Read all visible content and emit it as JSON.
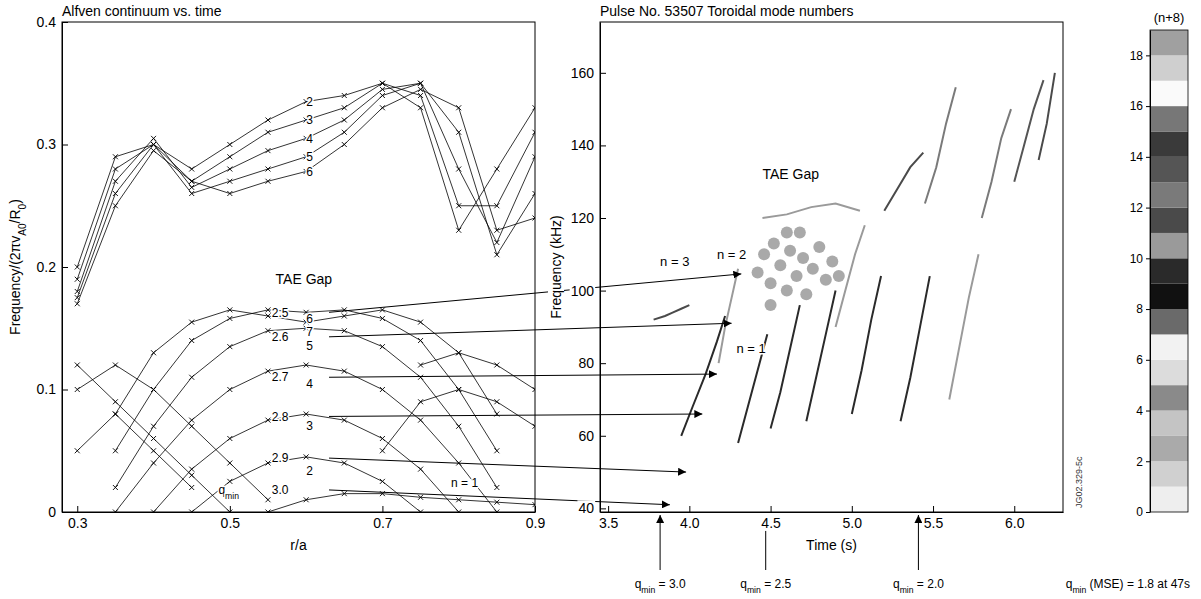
{
  "chart_data": [
    {
      "type": "line",
      "title": "Alfven continuum vs. time",
      "xlabel": "r/a",
      "ylabel": [
        {
          "text": "Frequency/(2πv"
        },
        {
          "text": "A0",
          "sub": true
        },
        {
          "text": "/R"
        },
        {
          "text": "0",
          "sub": true
        },
        {
          "text": ")"
        }
      ],
      "xlim": [
        0.28,
        0.9
      ],
      "xticks": [
        0.3,
        0.5,
        0.7,
        0.9
      ],
      "ylim": [
        0,
        0.4
      ],
      "yticks": [
        0,
        0.1,
        0.2,
        0.3,
        0.4
      ],
      "color": "#000000",
      "marker": "x",
      "line_style": "solid",
      "series": [
        {
          "x": [
            0.55,
            0.6,
            0.65,
            0.7,
            0.75,
            0.8,
            0.85,
            0.9
          ],
          "values": [
            0.0,
            0.01,
            0.015,
            0.015,
            0.012,
            0.01,
            0.008,
            0.006
          ]
        },
        {
          "x": [
            0.45,
            0.5,
            0.55,
            0.6,
            0.65,
            0.7,
            0.75
          ],
          "values": [
            0,
            0.025,
            0.04,
            0.045,
            0.04,
            0.025,
            0
          ]
        },
        {
          "x": [
            0.4,
            0.45,
            0.5,
            0.55,
            0.6,
            0.65,
            0.7,
            0.75,
            0.8
          ],
          "values": [
            0,
            0.035,
            0.06,
            0.075,
            0.08,
            0.075,
            0.06,
            0.035,
            0
          ]
        },
        {
          "x": [
            0.35,
            0.4,
            0.45,
            0.5,
            0.55,
            0.6,
            0.65,
            0.7,
            0.75,
            0.8,
            0.85
          ],
          "values": [
            0,
            0.04,
            0.075,
            0.1,
            0.115,
            0.12,
            0.115,
            0.1,
            0.075,
            0.04,
            0
          ]
        },
        {
          "x": [
            0.35,
            0.4,
            0.45,
            0.5,
            0.55,
            0.6,
            0.65,
            0.7,
            0.75,
            0.8,
            0.85
          ],
          "values": [
            0.02,
            0.07,
            0.11,
            0.135,
            0.148,
            0.15,
            0.148,
            0.135,
            0.11,
            0.07,
            0.02
          ]
        },
        {
          "x": [
            0.35,
            0.4,
            0.45,
            0.5,
            0.55,
            0.6,
            0.65,
            0.7,
            0.75,
            0.8,
            0.85
          ],
          "values": [
            0.05,
            0.1,
            0.14,
            0.158,
            0.165,
            0.163,
            0.165,
            0.158,
            0.14,
            0.1,
            0.05
          ]
        },
        {
          "x": [
            0.35,
            0.4,
            0.45,
            0.5,
            0.55,
            0.6,
            0.65,
            0.7,
            0.75,
            0.8,
            0.85
          ],
          "values": [
            0.08,
            0.13,
            0.155,
            0.165,
            0.16,
            0.155,
            0.16,
            0.165,
            0.155,
            0.13,
            0.08
          ]
        },
        {
          "x": [
            0.3,
            0.35,
            0.4,
            0.45,
            0.5
          ],
          "values": [
            0.12,
            0.09,
            0.06,
            0.03,
            0.0
          ]
        },
        {
          "x": [
            0.3,
            0.35,
            0.4,
            0.45,
            0.5,
            0.55
          ],
          "values": [
            0.1,
            0.12,
            0.1,
            0.07,
            0.04,
            0.01
          ]
        },
        {
          "x": [
            0.3,
            0.35,
            0.4,
            0.45
          ],
          "values": [
            0.05,
            0.08,
            0.05,
            0.02
          ]
        },
        {
          "x": [
            0.75,
            0.8,
            0.85,
            0.9
          ],
          "values": [
            0.12,
            0.13,
            0.12,
            0.1
          ]
        },
        {
          "x": [
            0.7,
            0.75,
            0.8,
            0.85,
            0.9
          ],
          "values": [
            0.05,
            0.09,
            0.1,
            0.09,
            0.07
          ]
        },
        {
          "x": [
            0.3,
            0.35,
            0.4,
            0.45,
            0.5,
            0.55,
            0.6,
            0.65,
            0.7,
            0.75,
            0.8,
            0.85,
            0.9
          ],
          "values": [
            0.2,
            0.29,
            0.3,
            0.28,
            0.3,
            0.32,
            0.335,
            0.34,
            0.35,
            0.33,
            0.23,
            0.28,
            0.33
          ]
        },
        {
          "x": [
            0.3,
            0.35,
            0.4,
            0.45,
            0.5,
            0.55,
            0.6,
            0.65,
            0.7,
            0.75,
            0.8,
            0.85,
            0.9
          ],
          "values": [
            0.19,
            0.28,
            0.3,
            0.27,
            0.29,
            0.31,
            0.32,
            0.33,
            0.35,
            0.34,
            0.25,
            0.25,
            0.31
          ]
        },
        {
          "x": [
            0.3,
            0.35,
            0.4,
            0.45,
            0.5,
            0.55,
            0.6,
            0.65,
            0.7,
            0.75,
            0.8,
            0.85,
            0.9
          ],
          "values": [
            0.18,
            0.27,
            0.305,
            0.265,
            0.28,
            0.295,
            0.305,
            0.32,
            0.345,
            0.35,
            0.28,
            0.22,
            0.29
          ]
        },
        {
          "x": [
            0.3,
            0.35,
            0.4,
            0.45,
            0.5,
            0.55,
            0.6,
            0.65,
            0.7,
            0.75,
            0.8,
            0.85,
            0.9
          ],
          "values": [
            0.175,
            0.26,
            0.3,
            0.26,
            0.27,
            0.28,
            0.29,
            0.31,
            0.34,
            0.35,
            0.31,
            0.21,
            0.26
          ]
        },
        {
          "x": [
            0.3,
            0.35,
            0.4,
            0.45,
            0.5,
            0.55,
            0.6,
            0.65,
            0.7,
            0.75,
            0.8,
            0.85,
            0.9
          ],
          "values": [
            0.17,
            0.25,
            0.295,
            0.27,
            0.26,
            0.27,
            0.278,
            0.3,
            0.33,
            0.345,
            0.33,
            0.23,
            0.24
          ]
        }
      ],
      "annotations": [
        {
          "text": "TAE Gap",
          "x": 0.56,
          "y": 0.19
        },
        {
          "text": "2",
          "x": 0.6,
          "y": 0.335
        },
        {
          "text": "3",
          "x": 0.6,
          "y": 0.32
        },
        {
          "text": "4",
          "x": 0.6,
          "y": 0.305
        },
        {
          "text": "5",
          "x": 0.6,
          "y": 0.29
        },
        {
          "text": "6",
          "x": 0.6,
          "y": 0.278
        },
        {
          "text": "6",
          "x": 0.6,
          "y": 0.158
        },
        {
          "text": "7",
          "x": 0.6,
          "y": 0.147
        },
        {
          "text": "5",
          "x": 0.6,
          "y": 0.136
        },
        {
          "text": "4",
          "x": 0.6,
          "y": 0.105
        },
        {
          "text": "3",
          "x": 0.6,
          "y": 0.07
        },
        {
          "text": "2",
          "x": 0.6,
          "y": 0.034
        },
        {
          "text": "n = 1",
          "x": 0.79,
          "y": 0.024
        },
        {
          "text": "2.5",
          "x": 0.555,
          "y": 0.163
        },
        {
          "text": "2.6",
          "x": 0.555,
          "y": 0.143
        },
        {
          "text": "2.7",
          "x": 0.555,
          "y": 0.11
        },
        {
          "text": "2.8",
          "x": 0.555,
          "y": 0.078
        },
        {
          "text": "2.9",
          "x": 0.555,
          "y": 0.044
        },
        {
          "text": "3.0",
          "x": 0.555,
          "y": 0.018
        },
        {
          "text": [
            {
              "text": "q"
            },
            {
              "text": "min",
              "sub": true
            }
          ],
          "x": 0.485,
          "y": 0.018
        }
      ]
    },
    {
      "type": "line",
      "title": "Pulse No. 53507 Toroidal mode numbers",
      "xlabel": "Time (s)",
      "ylabel": "Frequency (kHz)",
      "xlim": [
        3.45,
        6.3
      ],
      "xticks": [
        3.5,
        {
          "value": 4,
          "label": "4.0"
        },
        4.5,
        {
          "value": 5,
          "label": "5.0"
        },
        5.5,
        {
          "value": 6,
          "label": "6.0"
        }
      ],
      "ylim": [
        39,
        174
      ],
      "yticks": [
        40,
        60,
        80,
        100,
        120,
        140,
        160
      ],
      "series": [
        {
          "n": 3,
          "x": [
            3.78,
            3.85,
            3.9,
            3.95,
            4.0
          ],
          "values": [
            92,
            93,
            94,
            95,
            96
          ]
        },
        {
          "n": 1,
          "x": [
            3.95,
            4.02,
            4.1,
            4.17,
            4.22
          ],
          "values": [
            60,
            68,
            77,
            86,
            93
          ]
        },
        {
          "n": 2,
          "x": [
            4.18,
            4.22,
            4.26,
            4.3
          ],
          "values": [
            80,
            90,
            98,
            106
          ]
        },
        {
          "n": 1,
          "x": [
            4.3,
            4.36,
            4.42,
            4.48
          ],
          "values": [
            58,
            68,
            78,
            88
          ]
        },
        {
          "n": 1,
          "x": [
            4.5,
            4.56,
            4.62,
            4.68
          ],
          "values": [
            62,
            72,
            84,
            96
          ]
        },
        {
          "n": 1,
          "x": [
            4.72,
            4.78,
            4.84,
            4.9
          ],
          "values": [
            64,
            76,
            88,
            100
          ]
        },
        {
          "n": 2,
          "x": [
            4.9,
            4.96,
            5.02,
            5.08
          ],
          "values": [
            90,
            100,
            110,
            118
          ]
        },
        {
          "n": 1,
          "x": [
            5.0,
            5.06,
            5.12,
            5.18
          ],
          "values": [
            66,
            78,
            92,
            104
          ]
        },
        {
          "n": 1,
          "x": [
            5.3,
            5.36,
            5.42,
            5.48
          ],
          "values": [
            64,
            76,
            90,
            104
          ]
        },
        {
          "n": 3,
          "x": [
            5.2,
            5.28,
            5.36,
            5.44
          ],
          "values": [
            122,
            128,
            134,
            138
          ]
        },
        {
          "n": 4,
          "x": [
            5.45,
            5.52,
            5.58,
            5.64
          ],
          "values": [
            124,
            134,
            146,
            156
          ]
        },
        {
          "n": 2,
          "x": [
            5.6,
            5.66,
            5.72,
            5.78
          ],
          "values": [
            70,
            84,
            98,
            110
          ]
        },
        {
          "n": 4,
          "x": [
            5.8,
            5.86,
            5.92,
            5.98
          ],
          "values": [
            120,
            130,
            142,
            150
          ]
        },
        {
          "n": 5,
          "x": [
            6.0,
            6.06,
            6.12,
            6.18
          ],
          "values": [
            130,
            140,
            150,
            158
          ]
        },
        {
          "n": 3,
          "x": [
            6.15,
            6.2,
            6.25
          ],
          "values": [
            136,
            146,
            160
          ]
        },
        {
          "n": 2,
          "x": [
            4.45,
            4.6,
            4.75,
            4.9,
            5.05
          ],
          "values": [
            120,
            121,
            123,
            124,
            122
          ]
        },
        {
          "n": 2,
          "type": "scatter",
          "x": [
            4.42,
            4.46,
            4.5,
            4.52,
            4.56,
            4.6,
            4.62,
            4.66,
            4.7,
            4.72,
            4.76,
            4.8,
            4.84,
            4.88,
            4.6,
            4.5,
            4.68,
            4.92
          ],
          "values": [
            105,
            110,
            102,
            113,
            107,
            100,
            111,
            104,
            109,
            99,
            106,
            112,
            103,
            108,
            116,
            96,
            116,
            104
          ]
        }
      ],
      "annotations": [
        {
          "text": "TAE Gap",
          "x": 4.45,
          "y": 132
        },
        {
          "text": "n = 3",
          "x": 3.82,
          "y": 108
        },
        {
          "text": "n = 2",
          "x": 4.17,
          "y": 110
        },
        {
          "text": "n = 1",
          "x": 4.29,
          "y": 84
        }
      ],
      "colorbar": {
        "title": "(n+8)",
        "range": [
          0,
          19
        ],
        "ticks": [
          0,
          2,
          4,
          6,
          8,
          10,
          12,
          14,
          16,
          18
        ],
        "colors": [
          "#eeeeee",
          "#d0d0d0",
          "#aaaaaa",
          "#c4c4c4",
          "#8a8a8a",
          "#dcdcdc",
          "#f2f2f2",
          "#6a6a6a",
          "#111111",
          "#2a2a2a",
          "#9a9a9a",
          "#4a4a4a",
          "#7a7a7a",
          "#555555",
          "#3a3a3a",
          "#777777",
          "#fafafa",
          "#cfcfcf",
          "#a0a0a0"
        ]
      },
      "time_markers": [
        {
          "x": 3.82,
          "label": [
            {
              "text": "q"
            },
            {
              "text": "min",
              "sub": true
            },
            {
              "text": " = 3.0"
            }
          ]
        },
        {
          "x": 4.47,
          "label": [
            {
              "text": "q"
            },
            {
              "text": "min",
              "sub": true
            },
            {
              "text": " = 2.5"
            }
          ]
        },
        {
          "x": 5.41,
          "label": [
            {
              "text": "q"
            },
            {
              "text": "min",
              "sub": true
            },
            {
              "text": " = 2.0"
            }
          ]
        }
      ],
      "footnote": [
        {
          "text": "q"
        },
        {
          "text": "min",
          "sub": true
        },
        {
          "text": " (MSE) = 1.8 at 47s"
        }
      ],
      "figure_id": "JG02.329-5c"
    }
  ],
  "arrows": [
    {
      "from": [
        0.63,
        0.163
      ],
      "to": [
        4.32,
        104.6
      ]
    },
    {
      "from": [
        0.63,
        0.143
      ],
      "to": [
        4.26,
        91
      ]
    },
    {
      "from": [
        0.63,
        0.11
      ],
      "to": [
        4.17,
        77
      ]
    },
    {
      "from": [
        0.63,
        0.078
      ],
      "to": [
        4.08,
        66
      ]
    },
    {
      "from": [
        0.63,
        0.044
      ],
      "to": [
        3.98,
        50
      ]
    },
    {
      "from": [
        0.63,
        0.018
      ],
      "to": [
        3.88,
        41
      ]
    }
  ]
}
